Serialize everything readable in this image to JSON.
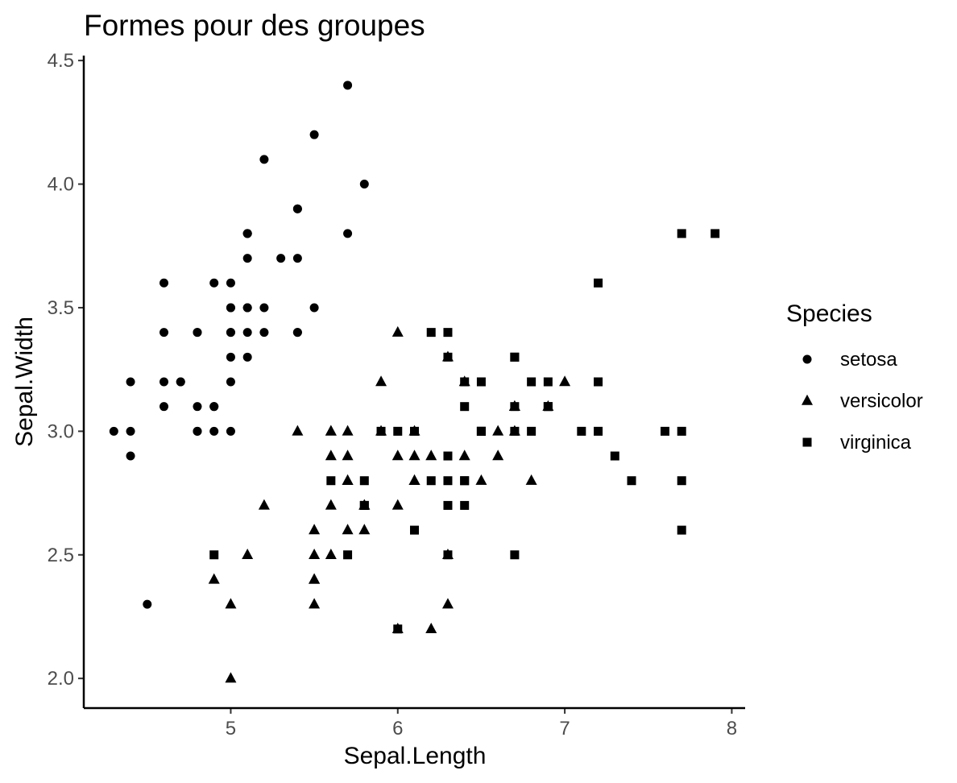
{
  "chart_data": {
    "type": "scatter",
    "title": "Formes pour des groupes",
    "xlabel": "Sepal.Length",
    "ylabel": "Sepal.Width",
    "xlim": [
      4.12,
      8.08
    ],
    "ylim": [
      1.88,
      4.52
    ],
    "x_ticks": [
      5,
      6,
      7,
      8
    ],
    "x_tick_labels": [
      "5",
      "6",
      "7",
      "8"
    ],
    "y_ticks": [
      2.0,
      2.5,
      3.0,
      3.5,
      4.0,
      4.5
    ],
    "y_tick_labels": [
      "2.0",
      "2.5",
      "3.0",
      "3.5",
      "4.0",
      "4.5"
    ],
    "grid": false,
    "legend": {
      "title": "Species",
      "position": "right"
    },
    "series": [
      {
        "name": "setosa",
        "shape": "circle",
        "color": "#000000",
        "points": [
          [
            5.1,
            3.5
          ],
          [
            4.9,
            3.0
          ],
          [
            4.7,
            3.2
          ],
          [
            4.6,
            3.1
          ],
          [
            5.0,
            3.6
          ],
          [
            5.4,
            3.9
          ],
          [
            4.6,
            3.4
          ],
          [
            5.0,
            3.4
          ],
          [
            4.4,
            2.9
          ],
          [
            4.9,
            3.1
          ],
          [
            5.4,
            3.7
          ],
          [
            4.8,
            3.4
          ],
          [
            4.8,
            3.0
          ],
          [
            4.3,
            3.0
          ],
          [
            5.8,
            4.0
          ],
          [
            5.7,
            4.4
          ],
          [
            5.4,
            3.9
          ],
          [
            5.1,
            3.5
          ],
          [
            5.7,
            3.8
          ],
          [
            5.1,
            3.8
          ],
          [
            5.4,
            3.4
          ],
          [
            5.1,
            3.7
          ],
          [
            4.6,
            3.6
          ],
          [
            5.1,
            3.3
          ],
          [
            4.8,
            3.4
          ],
          [
            5.0,
            3.0
          ],
          [
            5.0,
            3.4
          ],
          [
            5.2,
            3.5
          ],
          [
            5.2,
            3.4
          ],
          [
            4.7,
            3.2
          ],
          [
            4.8,
            3.1
          ],
          [
            5.4,
            3.4
          ],
          [
            5.2,
            4.1
          ],
          [
            5.5,
            4.2
          ],
          [
            4.9,
            3.1
          ],
          [
            5.0,
            3.2
          ],
          [
            5.5,
            3.5
          ],
          [
            4.9,
            3.6
          ],
          [
            4.4,
            3.0
          ],
          [
            5.1,
            3.4
          ],
          [
            5.0,
            3.5
          ],
          [
            4.5,
            2.3
          ],
          [
            4.4,
            3.2
          ],
          [
            5.0,
            3.5
          ],
          [
            5.1,
            3.8
          ],
          [
            4.8,
            3.0
          ],
          [
            5.1,
            3.8
          ],
          [
            4.6,
            3.2
          ],
          [
            5.3,
            3.7
          ],
          [
            5.0,
            3.3
          ]
        ]
      },
      {
        "name": "versicolor",
        "shape": "triangle",
        "color": "#000000",
        "points": [
          [
            7.0,
            3.2
          ],
          [
            6.4,
            3.2
          ],
          [
            6.9,
            3.1
          ],
          [
            5.5,
            2.3
          ],
          [
            6.5,
            2.8
          ],
          [
            5.7,
            2.8
          ],
          [
            6.3,
            3.3
          ],
          [
            4.9,
            2.4
          ],
          [
            6.6,
            2.9
          ],
          [
            5.2,
            2.7
          ],
          [
            5.0,
            2.0
          ],
          [
            5.9,
            3.0
          ],
          [
            6.0,
            2.2
          ],
          [
            6.1,
            2.9
          ],
          [
            5.6,
            2.9
          ],
          [
            6.7,
            3.1
          ],
          [
            5.6,
            3.0
          ],
          [
            5.8,
            2.7
          ],
          [
            6.2,
            2.2
          ],
          [
            5.6,
            2.5
          ],
          [
            5.9,
            3.2
          ],
          [
            6.1,
            2.8
          ],
          [
            6.3,
            2.5
          ],
          [
            6.1,
            2.8
          ],
          [
            6.4,
            2.9
          ],
          [
            6.6,
            3.0
          ],
          [
            6.8,
            2.8
          ],
          [
            6.7,
            3.0
          ],
          [
            6.0,
            2.9
          ],
          [
            5.7,
            2.6
          ],
          [
            5.5,
            2.4
          ],
          [
            5.5,
            2.4
          ],
          [
            5.8,
            2.7
          ],
          [
            6.0,
            2.7
          ],
          [
            5.4,
            3.0
          ],
          [
            6.0,
            3.4
          ],
          [
            6.7,
            3.1
          ],
          [
            6.3,
            2.3
          ],
          [
            5.6,
            3.0
          ],
          [
            5.5,
            2.5
          ],
          [
            5.5,
            2.6
          ],
          [
            6.1,
            3.0
          ],
          [
            5.8,
            2.6
          ],
          [
            5.0,
            2.3
          ],
          [
            5.6,
            2.7
          ],
          [
            5.7,
            3.0
          ],
          [
            5.7,
            2.9
          ],
          [
            6.2,
            2.9
          ],
          [
            5.1,
            2.5
          ],
          [
            5.7,
            2.8
          ]
        ]
      },
      {
        "name": "virginica",
        "shape": "square",
        "color": "#000000",
        "points": [
          [
            6.3,
            3.3
          ],
          [
            5.8,
            2.7
          ],
          [
            7.1,
            3.0
          ],
          [
            6.3,
            2.9
          ],
          [
            6.5,
            3.0
          ],
          [
            7.6,
            3.0
          ],
          [
            4.9,
            2.5
          ],
          [
            7.3,
            2.9
          ],
          [
            6.7,
            2.5
          ],
          [
            7.2,
            3.6
          ],
          [
            6.5,
            3.2
          ],
          [
            6.4,
            2.7
          ],
          [
            6.8,
            3.0
          ],
          [
            5.7,
            2.5
          ],
          [
            5.8,
            2.8
          ],
          [
            6.4,
            3.2
          ],
          [
            6.5,
            3.0
          ],
          [
            7.7,
            3.8
          ],
          [
            7.7,
            2.6
          ],
          [
            6.0,
            2.2
          ],
          [
            6.9,
            3.2
          ],
          [
            5.6,
            2.8
          ],
          [
            7.7,
            2.8
          ],
          [
            6.3,
            2.7
          ],
          [
            6.7,
            3.3
          ],
          [
            7.2,
            3.2
          ],
          [
            6.2,
            2.8
          ],
          [
            6.1,
            3.0
          ],
          [
            6.4,
            2.8
          ],
          [
            7.2,
            3.0
          ],
          [
            7.4,
            2.8
          ],
          [
            7.9,
            3.8
          ],
          [
            6.4,
            2.8
          ],
          [
            6.3,
            2.8
          ],
          [
            6.1,
            2.6
          ],
          [
            7.7,
            3.0
          ],
          [
            6.3,
            3.4
          ],
          [
            6.4,
            3.1
          ],
          [
            6.0,
            3.0
          ],
          [
            6.9,
            3.1
          ],
          [
            6.7,
            3.1
          ],
          [
            6.9,
            3.1
          ],
          [
            5.8,
            2.7
          ],
          [
            6.8,
            3.2
          ],
          [
            6.7,
            3.3
          ],
          [
            6.7,
            3.0
          ],
          [
            6.3,
            2.5
          ],
          [
            6.5,
            3.0
          ],
          [
            6.2,
            3.4
          ],
          [
            5.9,
            3.0
          ]
        ]
      }
    ]
  }
}
